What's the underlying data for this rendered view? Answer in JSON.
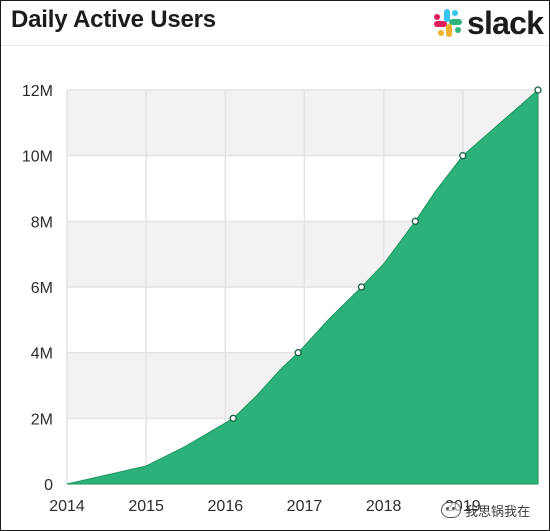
{
  "header": {
    "title": "Daily Active Users",
    "logo_text": "slack",
    "logo_colors": [
      "#36C5F0",
      "#2EB67D",
      "#ECB22E",
      "#E01E5A"
    ]
  },
  "watermark": {
    "text": "我思锅我在"
  },
  "colors": {
    "area": "#2bb179",
    "stroke": "#1e9660",
    "band": "#f2f2f2",
    "grid": "#e4e4e4"
  },
  "chart_data": {
    "type": "area",
    "title": "Daily Active Users",
    "xlabel": "",
    "ylabel": "",
    "x_ticks": [
      "2014",
      "2015",
      "2016",
      "2017",
      "2018",
      "2019"
    ],
    "y_ticks": [
      "0",
      "2M",
      "4M",
      "6M",
      "8M",
      "10M",
      "12M"
    ],
    "xlim": [
      2014,
      2019.95
    ],
    "ylim": [
      0,
      12
    ],
    "y_unit": "M",
    "grid": true,
    "series": [
      {
        "x": [
          2014.0,
          2015.0,
          2015.5,
          2016.1,
          2016.4,
          2016.7,
          2016.92,
          2017.3,
          2017.72,
          2018.0,
          2018.4,
          2018.65,
          2019.0,
          2019.95
        ],
        "y": [
          0,
          0.55,
          1.15,
          2.0,
          2.7,
          3.5,
          4.0,
          5.0,
          6.0,
          6.7,
          8.0,
          8.9,
          10.0,
          12.0
        ]
      }
    ],
    "markers": [
      {
        "x": 2016.1,
        "y": 2.0
      },
      {
        "x": 2016.92,
        "y": 4.0
      },
      {
        "x": 2017.72,
        "y": 6.0
      },
      {
        "x": 2018.4,
        "y": 8.0
      },
      {
        "x": 2019.0,
        "y": 10.0
      },
      {
        "x": 2019.95,
        "y": 12.0
      }
    ]
  }
}
